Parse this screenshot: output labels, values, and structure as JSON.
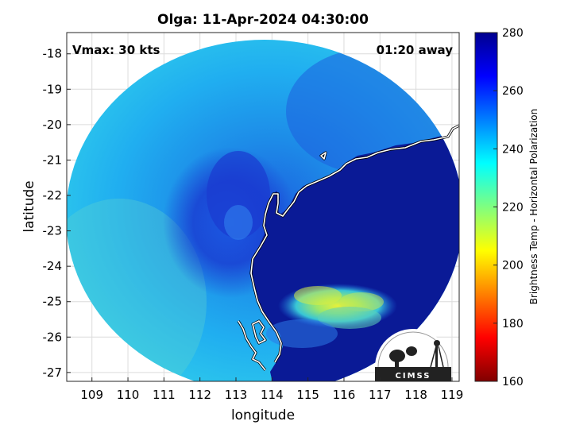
{
  "title": "Olga: 11-Apr-2024 04:30:00",
  "annotations": {
    "vmax": "Vmax: 30 kts",
    "time_away": "01:20 away"
  },
  "axes": {
    "xlabel": "longitude",
    "ylabel": "latitude",
    "xlim": [
      108.3,
      119.2
    ],
    "ylim": [
      -27.25,
      -17.4
    ],
    "xticks": [
      "109",
      "110",
      "111",
      "112",
      "113",
      "114",
      "115",
      "116",
      "117",
      "118",
      "119"
    ],
    "yticks": [
      "-18",
      "-19",
      "-20",
      "-21",
      "-22",
      "-23",
      "-24",
      "-25",
      "-26",
      "-27"
    ]
  },
  "colorbar": {
    "label": "Brightness Temp - Horizontal Polarization",
    "min": 160,
    "max": 280,
    "ticks": [
      "280",
      "260",
      "240",
      "220",
      "200",
      "180",
      "160"
    ],
    "colormap": "jet"
  },
  "logo": {
    "text": "CIMSS"
  },
  "colors": {
    "land": "#0a1a96",
    "deep_blue": "#1a3dd6",
    "ocean_light": "#1e9fe8",
    "ocean_cyan": "#23c3ee",
    "coastline": "#ffffff"
  }
}
